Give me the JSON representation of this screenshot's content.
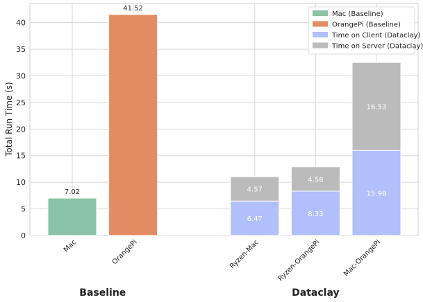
{
  "chart_data": {
    "type": "bar",
    "stacked": true,
    "ylabel": "Total Run Time (s)",
    "ylim": [
      0,
      43.6
    ],
    "yticks": [
      0,
      5,
      10,
      15,
      20,
      25,
      30,
      35,
      40
    ],
    "grid": true,
    "legend_position": "top-right",
    "groups": [
      "Baseline",
      "Dataclay"
    ],
    "categories": [
      "Mac",
      "OrangePi",
      "Ryzen-Mac",
      "Ryzen-OrangePi",
      "Mac-OrangePi"
    ],
    "category_group": [
      0,
      0,
      1,
      1,
      1
    ],
    "category_x": [
      0,
      1,
      3,
      4,
      5
    ],
    "series": [
      {
        "name": "Mac (Baseline)",
        "color": "#8ac2a6",
        "values": [
          7.02,
          null,
          null,
          null,
          null
        ],
        "labels": [
          "7.02",
          null,
          null,
          null,
          null
        ]
      },
      {
        "name": "OrangePi (Baseline)",
        "color": "#e38c64",
        "values": [
          null,
          41.52,
          null,
          null,
          null
        ],
        "labels": [
          null,
          "41.52",
          null,
          null,
          null
        ]
      },
      {
        "name": "Time on Client (Dataclay)",
        "color": "#b1bffa",
        "values": [
          null,
          null,
          6.47,
          8.33,
          15.98
        ],
        "labels": [
          null,
          null,
          "6.47",
          "8.33",
          "15.98"
        ]
      },
      {
        "name": "Time on Server (Dataclay)",
        "color": "#bbbbbb",
        "values": [
          null,
          null,
          4.57,
          4.58,
          16.53
        ],
        "labels": [
          null,
          null,
          "4.57",
          "4.58",
          "16.53"
        ]
      }
    ]
  }
}
